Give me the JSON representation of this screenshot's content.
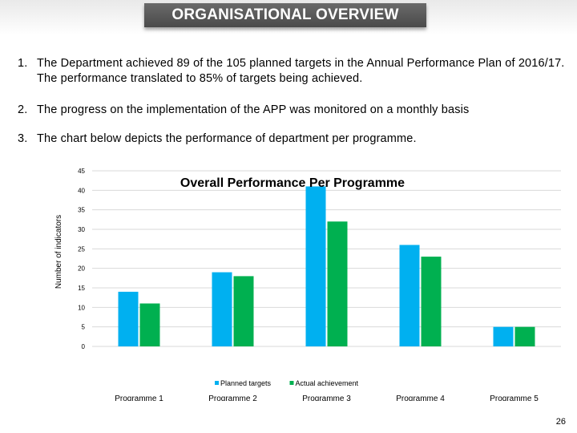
{
  "header": {
    "title": "ORGANISATIONAL OVERVIEW"
  },
  "points": [
    {
      "num": "1.",
      "text": "The Department achieved 89 of the 105 planned targets in the Annual Performance Plan of 2016/17. The performance translated to 85% of targets being achieved."
    },
    {
      "num": "2.",
      "text": "The progress on the implementation of the APP was monitored on a monthly basis"
    },
    {
      "num": "3.",
      "text": "The chart below depicts the performance of department per programme."
    }
  ],
  "chart_data": {
    "type": "bar",
    "title": "Overall Performance Per Programme",
    "xlabel": "",
    "ylabel": "Number of indicators",
    "ylim": [
      0,
      45
    ],
    "yticks": [
      0,
      5,
      10,
      15,
      20,
      25,
      30,
      35,
      40,
      45
    ],
    "categories": [
      "Programme 1",
      "Programme 2",
      "Programme 3",
      "Programme 4",
      "Programme 5"
    ],
    "series": [
      {
        "name": "Planned targets",
        "color": "#00b0f0",
        "values": [
          14,
          19,
          41,
          26,
          5
        ]
      },
      {
        "name": "Actual achievement",
        "color": "#00b050",
        "values": [
          11,
          18,
          32,
          23,
          5
        ]
      }
    ],
    "grid": true,
    "legend": "bottom"
  },
  "footer": {
    "page_number": "26"
  }
}
